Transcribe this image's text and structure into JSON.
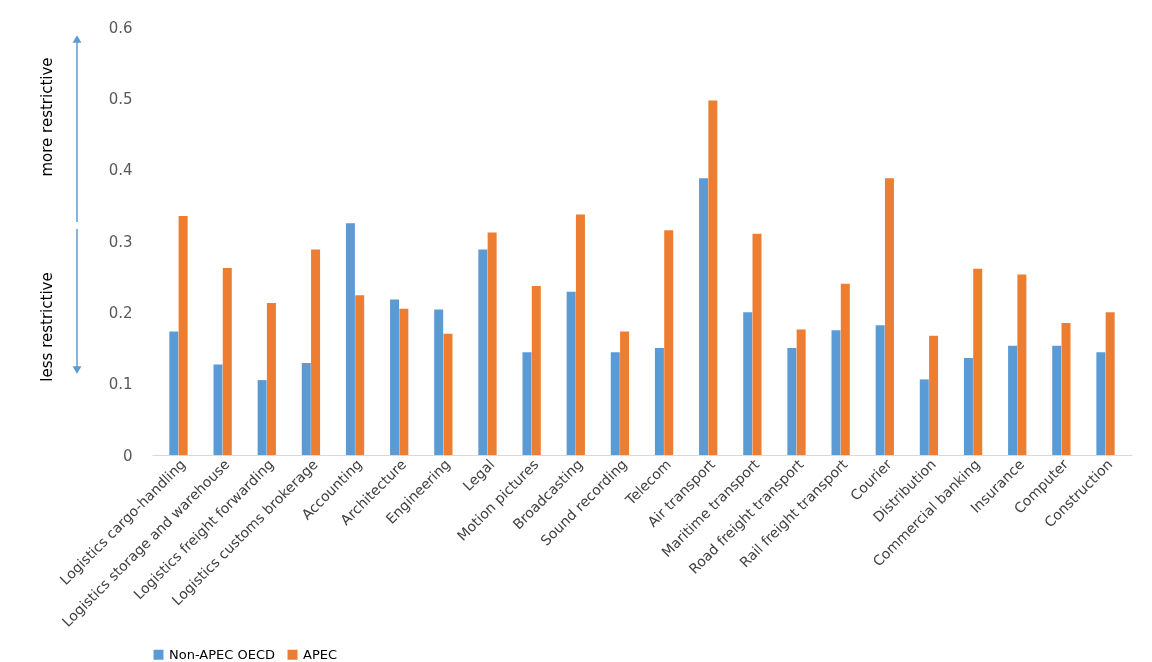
{
  "chart_data": {
    "type": "bar",
    "categories": [
      "Logistics cargo-handling",
      "Logistics storage and warehouse",
      "Logistics freight forwarding",
      "Logistics customs brokerage",
      "Accounting",
      "Architecture",
      "Engineering",
      "Legal",
      "Motion pictures",
      "Broadcasting",
      "Sound recording",
      "Telecom",
      "Air transport",
      "Maritime transport",
      "Road freight transport",
      "Rail freight transport",
      "Courier",
      "Distribution",
      "Commercial banking",
      "Insurance",
      "Computer",
      "Construction"
    ],
    "series": [
      {
        "name": "Non-APEC OECD",
        "color": "#5b9bd5",
        "values": [
          0.173,
          0.127,
          0.105,
          0.129,
          0.325,
          0.218,
          0.204,
          0.288,
          0.144,
          0.229,
          0.144,
          0.15,
          0.388,
          0.2,
          0.15,
          0.175,
          0.182,
          0.106,
          0.136,
          0.153,
          0.153,
          0.144
        ]
      },
      {
        "name": "APEC",
        "color": "#ed7d31",
        "values": [
          0.335,
          0.262,
          0.213,
          0.288,
          0.224,
          0.205,
          0.17,
          0.312,
          0.237,
          0.337,
          0.173,
          0.315,
          0.497,
          0.31,
          0.176,
          0.24,
          0.388,
          0.167,
          0.261,
          0.253,
          0.185,
          0.2
        ]
      }
    ],
    "ylim": [
      0,
      0.6
    ],
    "yticks": [
      0,
      0.1,
      0.2,
      0.3,
      0.4,
      0.5,
      0.6
    ],
    "grid": false,
    "legend": "bottom",
    "annotations": [
      "more restrictive",
      "less restrictive"
    ]
  }
}
